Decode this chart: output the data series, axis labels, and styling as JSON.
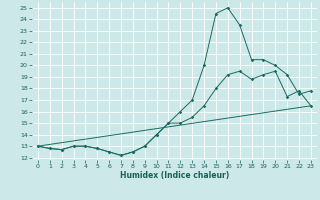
{
  "xlabel": "Humidex (Indice chaleur)",
  "bg_color": "#cce8e8",
  "grid_color": "#ffffff",
  "line_color": "#1a6b5e",
  "xlim": [
    -0.5,
    23.5
  ],
  "ylim": [
    11.8,
    25.5
  ],
  "yticks": [
    12,
    13,
    14,
    15,
    16,
    17,
    18,
    19,
    20,
    21,
    22,
    23,
    24,
    25
  ],
  "xticks": [
    0,
    1,
    2,
    3,
    4,
    5,
    6,
    7,
    8,
    9,
    10,
    11,
    12,
    13,
    14,
    15,
    16,
    17,
    18,
    19,
    20,
    21,
    22,
    23
  ],
  "line1_x": [
    0,
    1,
    2,
    3,
    4,
    5,
    6,
    7,
    8,
    9,
    10,
    11,
    12,
    13,
    14,
    15,
    16,
    17,
    18,
    19,
    20,
    21,
    22,
    23
  ],
  "line1_y": [
    13.0,
    12.8,
    12.7,
    13.0,
    13.0,
    12.8,
    12.5,
    12.2,
    12.5,
    13.0,
    14.0,
    15.0,
    16.0,
    17.0,
    20.0,
    24.5,
    25.0,
    23.5,
    20.5,
    20.5,
    20.0,
    19.2,
    17.5,
    17.8
  ],
  "line2_x": [
    0,
    1,
    2,
    3,
    4,
    5,
    6,
    7,
    8,
    9,
    10,
    11,
    12,
    13,
    14,
    15,
    16,
    17,
    18,
    19,
    20,
    21,
    22,
    23
  ],
  "line2_y": [
    13.0,
    12.8,
    12.7,
    13.0,
    13.0,
    12.8,
    12.5,
    12.2,
    12.5,
    13.0,
    14.0,
    15.0,
    15.0,
    15.5,
    16.5,
    18.0,
    19.2,
    19.5,
    18.8,
    19.2,
    19.5,
    17.3,
    17.8,
    16.5
  ],
  "line3_x": [
    0,
    23
  ],
  "line3_y": [
    13.0,
    16.5
  ]
}
